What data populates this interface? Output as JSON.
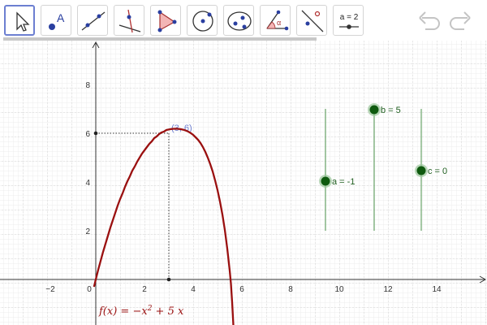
{
  "toolbar": {
    "tools": [
      {
        "name": "move-tool"
      },
      {
        "name": "point-tool",
        "glyph": "A"
      },
      {
        "name": "line-tool"
      },
      {
        "name": "perpendicular-line-tool"
      },
      {
        "name": "polygon-tool"
      },
      {
        "name": "circle-with-center-tool"
      },
      {
        "name": "ellipse-tool"
      },
      {
        "name": "angle-tool"
      },
      {
        "name": "reflect-tool"
      },
      {
        "name": "slider-tool",
        "label": "a = 2"
      }
    ],
    "undo_icon": "undo-icon",
    "redo_icon": "redo-icon"
  },
  "graph": {
    "x_ticks": [
      "−2",
      "0",
      "2",
      "4",
      "6",
      "8",
      "10",
      "12",
      "14"
    ],
    "y_ticks": [
      "2",
      "4",
      "6",
      "8"
    ],
    "function_label": {
      "name": "f(x)",
      "eq": " =  −x",
      "sup": "2",
      "rest": " + 5 x"
    },
    "point_label": "(3, 6)",
    "sliders": [
      {
        "label": "a = -1",
        "value": -1
      },
      {
        "label": "b = 5",
        "value": 5
      },
      {
        "label": "c = 0",
        "value": 0
      }
    ],
    "colors": {
      "function": "#9a1010",
      "slider": "#1b6b1b",
      "point_label": "#7080d0"
    }
  }
}
